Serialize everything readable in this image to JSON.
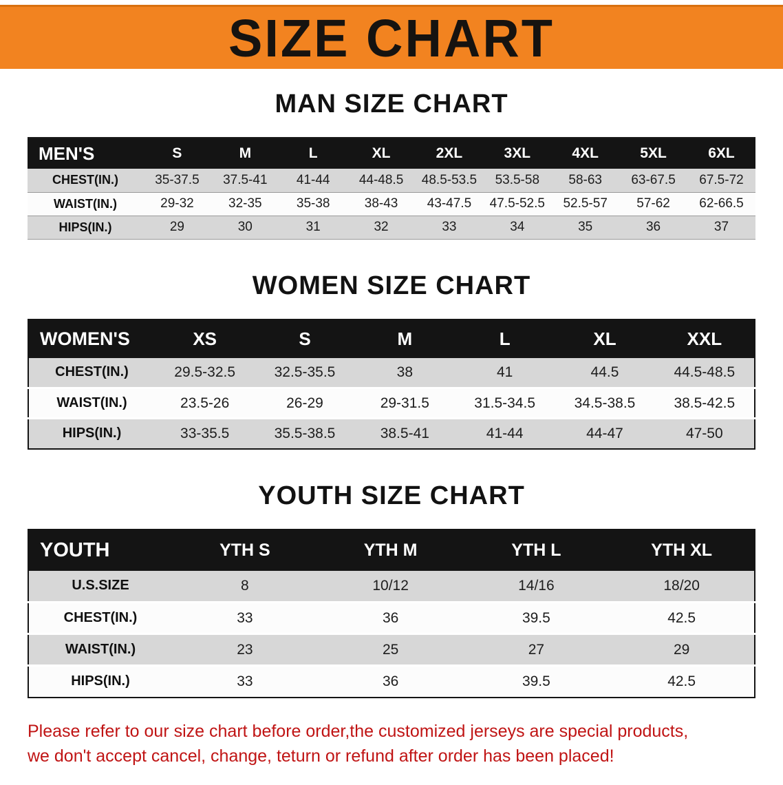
{
  "banner": {
    "title": "SIZE CHART",
    "bg_color": "#f28320",
    "text_color": "#161310"
  },
  "sections": [
    {
      "heading": "MAN SIZE CHART",
      "table": {
        "header": [
          "MEN'S",
          "S",
          "M",
          "L",
          "XL",
          "2XL",
          "3XL",
          "4XL",
          "5XL",
          "6XL"
        ],
        "rows": [
          [
            "CHEST(IN.)",
            "35-37.5",
            "37.5-41",
            "41-44",
            "44-48.5",
            "48.5-53.5",
            "53.5-58",
            "58-63",
            "63-67.5",
            "67.5-72"
          ],
          [
            "WAIST(IN.)",
            "29-32",
            "32-35",
            "35-38",
            "38-43",
            "43-47.5",
            "47.5-52.5",
            "52.5-57",
            "57-62",
            "62-66.5"
          ],
          [
            "HIPS(IN.)",
            "29",
            "30",
            "31",
            "32",
            "33",
            "34",
            "35",
            "36",
            "37"
          ]
        ]
      }
    },
    {
      "heading": "WOMEN SIZE CHART",
      "table": {
        "header": [
          "WOMEN'S",
          "XS",
          "S",
          "M",
          "L",
          "XL",
          "XXL"
        ],
        "rows": [
          [
            "CHEST(IN.)",
            "29.5-32.5",
            "32.5-35.5",
            "38",
            "41",
            "44.5",
            "44.5-48.5"
          ],
          [
            "WAIST(IN.)",
            "23.5-26",
            "26-29",
            "29-31.5",
            "31.5-34.5",
            "34.5-38.5",
            "38.5-42.5"
          ],
          [
            "HIPS(IN.)",
            "33-35.5",
            "35.5-38.5",
            "38.5-41",
            "41-44",
            "44-47",
            "47-50"
          ]
        ]
      }
    },
    {
      "heading": "YOUTH SIZE CHART",
      "table": {
        "header": [
          "YOUTH",
          "YTH S",
          "YTH M",
          "YTH L",
          "YTH XL"
        ],
        "rows": [
          [
            "U.S.SIZE",
            "8",
            "10/12",
            "14/16",
            "18/20"
          ],
          [
            "CHEST(IN.)",
            "33",
            "36",
            "39.5",
            "42.5"
          ],
          [
            "WAIST(IN.)",
            "23",
            "25",
            "27",
            "29"
          ],
          [
            "HIPS(IN.)",
            "33",
            "36",
            "39.5",
            "42.5"
          ]
        ]
      }
    }
  ],
  "footer": {
    "lines": [
      "Please refer to our size chart before order,the customized jerseys are special products,",
      "we don't accept cancel, change, teturn or refund after order has been placed!"
    ],
    "text_color": "#c01414"
  },
  "colors": {
    "header_row_bg": "#141414",
    "alt_row_bg": "#d7d7d7",
    "banner_orange": "#f28320"
  }
}
